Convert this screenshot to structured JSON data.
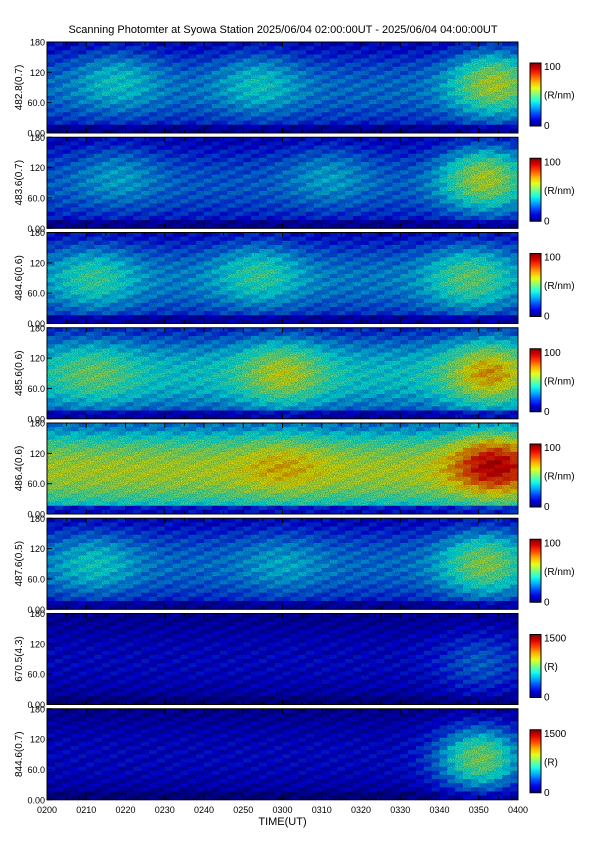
{
  "title": "Scanning Photomter at Syowa Station  2025/06/04 02:00:00UT - 2025/06/04 04:00:00UT",
  "chart_data": {
    "type": "heatmap",
    "xlabel": "TIME(UT)",
    "x_ticks": [
      "0200",
      "0210",
      "0220",
      "0230",
      "0240",
      "0250",
      "0300",
      "0310",
      "0320",
      "0330",
      "0340",
      "0350",
      "0400"
    ],
    "y_ticks": [
      "0.00",
      "60.0",
      "120",
      "180"
    ],
    "ylim": [
      0,
      180
    ],
    "panels": [
      {
        "ylabel": "482.8(0.7)",
        "unit": "(R/nm)",
        "cmax": "100",
        "cmin": "0",
        "level": 0.22,
        "bright": [
          {
            "t": 0.15,
            "y": 0.6,
            "v": 0.35
          },
          {
            "t": 0.45,
            "y": 0.55,
            "v": 0.35
          },
          {
            "t": 0.95,
            "y": 0.55,
            "v": 0.55
          }
        ]
      },
      {
        "ylabel": "483.6(0.7)",
        "unit": "(R/nm)",
        "cmax": "100",
        "cmin": "0",
        "level": 0.2,
        "bright": [
          {
            "t": 0.15,
            "y": 0.6,
            "v": 0.3
          },
          {
            "t": 0.6,
            "y": 0.6,
            "v": 0.3
          },
          {
            "t": 0.93,
            "y": 0.55,
            "v": 0.55
          }
        ]
      },
      {
        "ylabel": "484.6(0.6)",
        "unit": "(R/nm)",
        "cmax": "100",
        "cmin": "0",
        "level": 0.24,
        "bright": [
          {
            "t": 0.1,
            "y": 0.5,
            "v": 0.4
          },
          {
            "t": 0.45,
            "y": 0.55,
            "v": 0.4
          },
          {
            "t": 0.9,
            "y": 0.5,
            "v": 0.45
          }
        ]
      },
      {
        "ylabel": "485.6(0.6)",
        "unit": "(R/nm)",
        "cmax": "100",
        "cmin": "0",
        "level": 0.32,
        "bright": [
          {
            "t": 0.1,
            "y": 0.5,
            "v": 0.45
          },
          {
            "t": 0.5,
            "y": 0.5,
            "v": 0.55
          },
          {
            "t": 0.94,
            "y": 0.5,
            "v": 0.65
          }
        ]
      },
      {
        "ylabel": "486.4(0.6)",
        "unit": "(R/nm)",
        "cmax": "100",
        "cmin": "0",
        "level": 0.5,
        "bright": [
          {
            "t": 0.5,
            "y": 0.55,
            "v": 0.6
          },
          {
            "t": 0.95,
            "y": 0.55,
            "v": 0.85
          }
        ]
      },
      {
        "ylabel": "487.6(0.5)",
        "unit": "(R/nm)",
        "cmax": "100",
        "cmin": "0",
        "level": 0.22,
        "bright": [
          {
            "t": 0.1,
            "y": 0.5,
            "v": 0.35
          },
          {
            "t": 0.5,
            "y": 0.5,
            "v": 0.3
          },
          {
            "t": 0.93,
            "y": 0.5,
            "v": 0.5
          }
        ]
      },
      {
        "ylabel": "670.5(4.3)",
        "unit": "(R)",
        "cmax": "1500",
        "cmin": "0",
        "level": 0.1,
        "bright": [
          {
            "t": 0.92,
            "y": 0.45,
            "v": 0.22
          }
        ]
      },
      {
        "ylabel": "844.6(0.7)",
        "unit": "(R)",
        "cmax": "1500",
        "cmin": "0",
        "level": 0.1,
        "bright": [
          {
            "t": 0.92,
            "y": 0.45,
            "v": 0.5
          }
        ]
      }
    ]
  }
}
